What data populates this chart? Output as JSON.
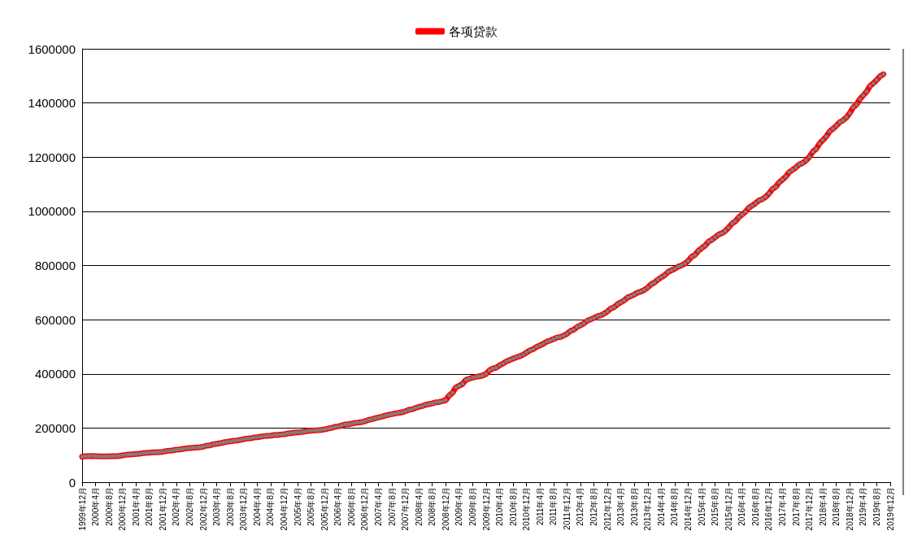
{
  "chart_data": {
    "type": "line",
    "categories": [
      "1999年12月",
      null,
      null,
      null,
      "2000年4月",
      null,
      null,
      null,
      "2000年8月",
      null,
      null,
      null,
      "2000年12月",
      null,
      null,
      null,
      "2001年4月",
      null,
      null,
      null,
      "2001年8月",
      null,
      null,
      null,
      "2001年12月",
      null,
      null,
      null,
      "2002年4月",
      null,
      null,
      null,
      "2002年8月",
      null,
      null,
      null,
      "2002年12月",
      null,
      null,
      null,
      "2003年4月",
      null,
      null,
      null,
      "2003年8月",
      null,
      null,
      null,
      "2003年12月",
      null,
      null,
      null,
      "2004年4月",
      null,
      null,
      null,
      "2004年8月",
      null,
      null,
      null,
      "2004年12月",
      null,
      null,
      null,
      "2005年4月",
      null,
      null,
      null,
      "2005年8月",
      null,
      null,
      null,
      "2005年12月",
      null,
      null,
      null,
      "2006年4月",
      null,
      null,
      null,
      "2006年8月",
      null,
      null,
      null,
      "2006年12月",
      null,
      null,
      null,
      "2007年4月",
      null,
      null,
      null,
      "2007年8月",
      null,
      null,
      null,
      "2007年12月",
      null,
      null,
      null,
      "2008年4月",
      null,
      null,
      null,
      "2008年8月",
      null,
      null,
      null,
      "2008年12月",
      null,
      null,
      null,
      "2009年4月",
      null,
      null,
      null,
      "2009年8月",
      null,
      null,
      null,
      "2009年12月",
      null,
      null,
      null,
      "2010年4月",
      null,
      null,
      null,
      "2010年8月",
      null,
      null,
      null,
      "2010年12月",
      null,
      null,
      null,
      "2011年4月",
      null,
      null,
      null,
      "2011年8月",
      null,
      null,
      null,
      "2011年12月",
      null,
      null,
      null,
      "2012年4月",
      null,
      null,
      null,
      "2012年8月",
      null,
      null,
      null,
      "2012年12月",
      null,
      null,
      null,
      "2013年4月",
      null,
      null,
      null,
      "2013年8月",
      null,
      null,
      null,
      "2013年12月",
      null,
      null,
      null,
      "2014年4月",
      null,
      null,
      null,
      "2014年8月",
      null,
      null,
      null,
      "2014年12月",
      null,
      null,
      null,
      "2015年4月",
      null,
      null,
      null,
      "2015年8月",
      null,
      null,
      null,
      "2015年12月",
      null,
      null,
      null,
      "2016年4月",
      null,
      null,
      null,
      "2016年8月",
      null,
      null,
      null,
      "2016年12月",
      null,
      null,
      null,
      "2017年4月",
      null,
      null,
      null,
      "2017年8月",
      null,
      null,
      null,
      "2017年12月",
      null,
      null,
      null,
      "2018年4月",
      null,
      null,
      null,
      "2018年8月",
      null,
      null,
      null,
      "2018年12月",
      null,
      null,
      null,
      "2019年4月",
      null,
      null,
      null,
      "2019年8月",
      null,
      null,
      null,
      "2019年12月"
    ],
    "series": [
      {
        "name": "各项贷款",
        "color": "#ff0000",
        "values": [
          94000,
          96000,
          96000,
          97000,
          96000,
          95000,
          95000,
          95000,
          95000,
          96000,
          96000,
          97000,
          99000,
          101000,
          102000,
          103000,
          104000,
          105000,
          107000,
          108000,
          109000,
          110000,
          110000,
          111000,
          112000,
          115000,
          116000,
          118000,
          120000,
          121000,
          123000,
          125000,
          126000,
          127000,
          128000,
          129000,
          131000,
          135000,
          136000,
          140000,
          142000,
          144000,
          147000,
          149000,
          151000,
          153000,
          154000,
          156000,
          159000,
          161000,
          162000,
          165000,
          166000,
          168000,
          170000,
          171000,
          172000,
          174000,
          174000,
          176000,
          177000,
          180000,
          181000,
          183000,
          184000,
          185000,
          187000,
          189000,
          190000,
          191000,
          192000,
          193000,
          195000,
          198000,
          200000,
          204000,
          206000,
          209000,
          213000,
          214000,
          216000,
          219000,
          220000,
          222000,
          225000,
          230000,
          232000,
          236000,
          239000,
          242000,
          246000,
          249000,
          251000,
          254000,
          256000,
          258000,
          262000,
          267000,
          269000,
          274000,
          278000,
          281000,
          286000,
          288000,
          291000,
          295000,
          296000,
          299000,
          303000,
          320000,
          330000,
          350000,
          356000,
          363000,
          378000,
          382000,
          386000,
          389000,
          391000,
          394000,
          400000,
          413000,
          420000,
          423000,
          432000,
          438000,
          446000,
          451000,
          456000,
          461000,
          465000,
          471000,
          479000,
          487000,
          491000,
          500000,
          505000,
          511000,
          519000,
          523000,
          528000,
          534000,
          536000,
          541000,
          548000,
          558000,
          563000,
          573000,
          579000,
          586000,
          596000,
          601000,
          606000,
          613000,
          616000,
          622000,
          630000,
          641000,
          646000,
          657000,
          664000,
          671000,
          682000,
          687000,
          693000,
          700000,
          704000,
          710000,
          719000,
          731000,
          737000,
          748000,
          756000,
          764000,
          776000,
          782000,
          788000,
          796000,
          800000,
          807000,
          817000,
          832000,
          839000,
          854000,
          864000,
          873000,
          888000,
          895000,
          904000,
          914000,
          919000,
          927000,
          940000,
          955000,
          963000,
          978000,
          988000,
          998000,
          1013000,
          1021000,
          1030000,
          1040000,
          1045000,
          1053000,
          1066000,
          1082000,
          1090000,
          1107000,
          1117000,
          1128000,
          1145000,
          1153000,
          1162000,
          1173000,
          1178000,
          1188000,
          1201000,
          1220000,
          1230000,
          1250000,
          1263000,
          1276000,
          1295000,
          1305000,
          1316000,
          1329000,
          1336000,
          1347000,
          1363000,
          1384000,
          1394000,
          1415000,
          1428000,
          1442000,
          1463000,
          1473000,
          1485000,
          1499000,
          1506000,
          null,
          null
        ]
      }
    ],
    "ylim": [
      0,
      1600000
    ],
    "yticks": [
      0,
      200000,
      400000,
      600000,
      800000,
      1000000,
      1200000,
      1400000,
      1600000
    ],
    "grid": "y",
    "legend": "top",
    "marker": "square"
  }
}
